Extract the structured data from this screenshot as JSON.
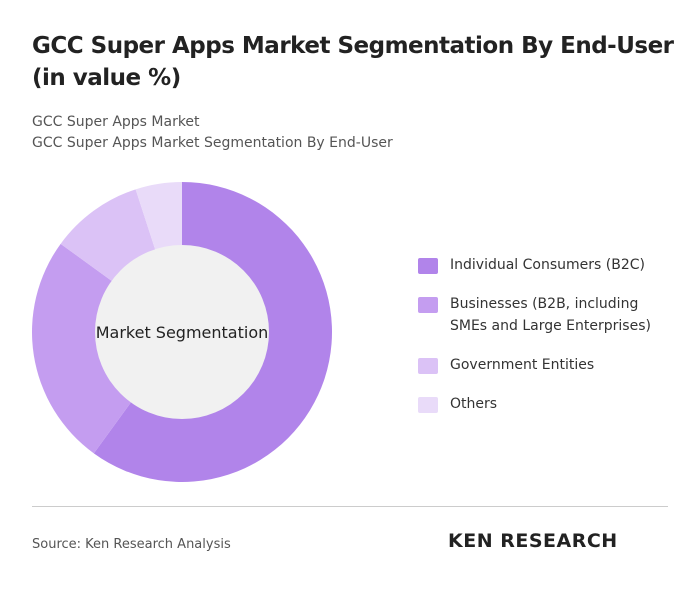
{
  "chart_data": {
    "type": "donut",
    "title": "GCC Super Apps Market Segmentation By End-User (in value %)",
    "subtitle": [
      "GCC Super Apps Market",
      "GCC Super Apps Market Segmentation By End-User"
    ],
    "center_label": "Market Segmentation",
    "categories": [
      "Individual Consumers (B2C)",
      "Businesses (B2B, including SMEs and Large Enterprises)",
      "Government Entities",
      "Others"
    ],
    "values": [
      60,
      25,
      10,
      5
    ],
    "colors": [
      "#b184ea",
      "#c49df0",
      "#dbc2f6",
      "#e9dbf9"
    ],
    "legend": "right"
  },
  "footer": {
    "source": "Source: Ken Research Analysis",
    "logo": "KEN RESEARCH"
  }
}
